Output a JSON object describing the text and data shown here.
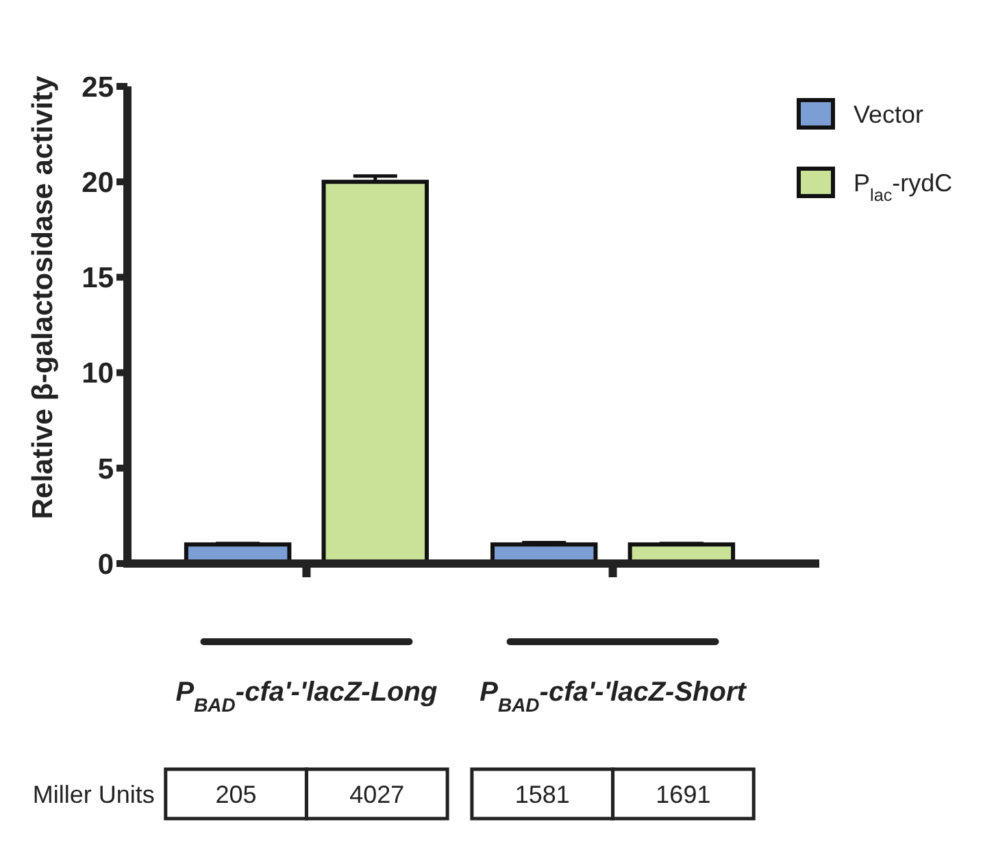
{
  "chart_data": {
    "type": "bar",
    "ylabel": "Relative β-galactosidase activity",
    "categories": [
      "P$_{BAD}$-cfa'-'lacZ-Long",
      "P$_{BAD}$-cfa'-'lacZ-Short"
    ],
    "series": [
      {
        "name": "Vector",
        "color": "#7b9fd4",
        "values": [
          1,
          1
        ],
        "errors": [
          0.05,
          0.1
        ]
      },
      {
        "name": "P$_{lac}$-rydC",
        "color": "#c9e298",
        "values": [
          20,
          1
        ],
        "errors": [
          0.3,
          0.05
        ]
      }
    ],
    "ylim": [
      0,
      25
    ],
    "yticks": [
      0,
      5,
      10,
      15,
      20,
      25
    ],
    "grid": false,
    "legend": "right",
    "annotations": [
      "Miller Units",
      "205",
      "4027",
      "1581",
      "1691"
    ]
  }
}
